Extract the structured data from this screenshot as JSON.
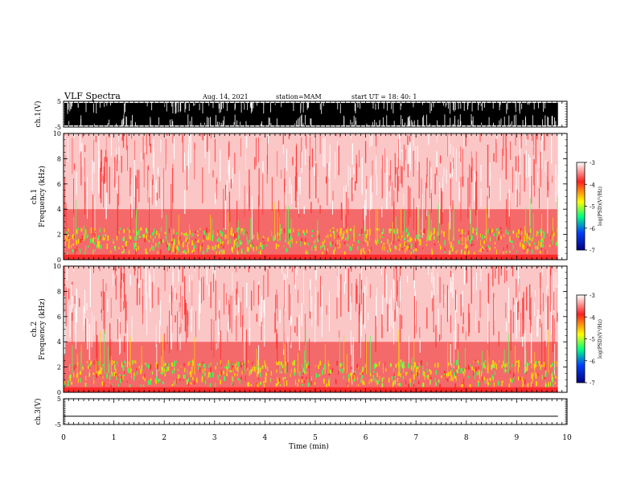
{
  "header": {
    "title": "VLF Spectra",
    "date": "Aug. 14, 2021",
    "station": "station=MAM",
    "start_ut": "start  UT =   18: 40: 1"
  },
  "colors": {
    "spectrogram_scale": [
      "#000080",
      "#0040ff",
      "#00ff80",
      "#ffff00",
      "#ff2020",
      "#ffffff"
    ],
    "background": "#ffffff"
  },
  "chart_data": [
    {
      "type": "line",
      "panel": "ch1-waveform",
      "ylabel": "ch.1(V)",
      "yticks": [
        "5",
        "-5"
      ],
      "ylim": [
        -5,
        5
      ],
      "xlim": [
        0,
        10
      ],
      "note_visual": "dense black vertical bursts filling most of the range"
    },
    {
      "type": "heatmap",
      "panel": "ch1-spectrogram",
      "ylabel": "ch.1\nFrequency (kHz)",
      "yticks": [
        "0",
        "2",
        "4",
        "6",
        "8",
        "10"
      ],
      "ylim": [
        0,
        10
      ],
      "xlim": [
        0,
        9.82
      ],
      "colorbar": {
        "label": "log(PSD)(V²/Hz)",
        "ticks": [
          "-3",
          "-4",
          "-5",
          "-6",
          "-7"
        ],
        "range": [
          -7,
          -3
        ]
      },
      "band_kHz": [
        0.5,
        2.0
      ],
      "band_level": -5
    },
    {
      "type": "heatmap",
      "panel": "ch2-spectrogram",
      "ylabel": "ch.2\nFrequency (kHz)",
      "yticks": [
        "0",
        "2",
        "4",
        "6",
        "8",
        "10"
      ],
      "ylim": [
        0,
        10
      ],
      "xlim": [
        0,
        9.82
      ],
      "colorbar": {
        "label": "log(PSD)(V²/Hz)",
        "ticks": [
          "-3",
          "-4",
          "-5",
          "-6",
          "-7"
        ],
        "range": [
          -7,
          -3
        ]
      },
      "band_kHz": [
        0.5,
        2.0
      ],
      "band_level": -5
    },
    {
      "type": "line",
      "panel": "ch3-waveform",
      "ylabel": "ch.3(V)",
      "yticks": [
        "5",
        "-5"
      ],
      "ylim": [
        -5,
        5
      ],
      "xlim": [
        0,
        10
      ],
      "x": [
        0,
        9.82
      ],
      "y": [
        -1.8,
        -1.8
      ]
    }
  ],
  "xaxis": {
    "label": "Time (min)",
    "ticks": [
      "0",
      "1",
      "2",
      "3",
      "4",
      "5",
      "6",
      "7",
      "8",
      "9",
      "10"
    ],
    "range": [
      0,
      10
    ]
  }
}
